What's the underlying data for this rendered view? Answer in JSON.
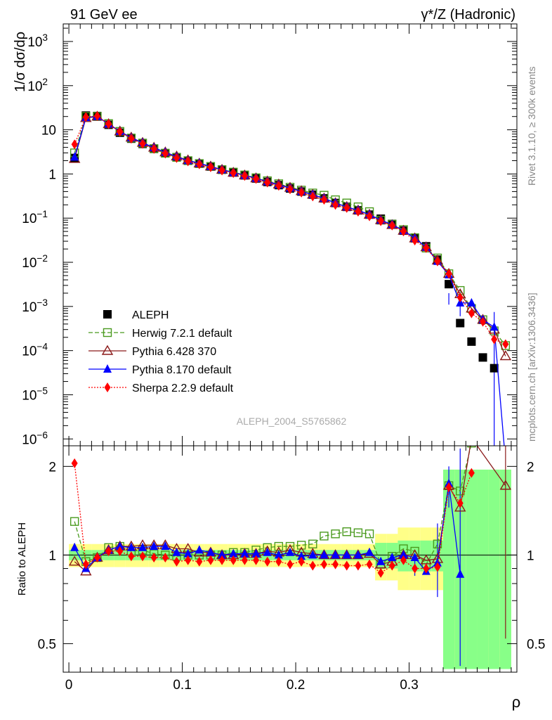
{
  "header": {
    "left_title": "91 GeV ee",
    "right_title": "γ*/Z (Hadronic)",
    "side_label_1": "Rivet 3.1.10, ≥ 300k events",
    "side_label_2": "mcplots.cern.ch [arXiv:1306.3436]",
    "analysis_id": "ALEPH_2004_S5765862"
  },
  "colors": {
    "data": "#000000",
    "herwig": "#4a9a1e",
    "pythia6": "#8b1a1a",
    "pythia8": "#0000ff",
    "sherpa": "#ff0000",
    "band_yellow": "#ffff88",
    "band_green": "#88ff88"
  },
  "chart_data": [
    {
      "type": "line",
      "title": "91 GeV ee",
      "xlabel": "ρ",
      "ylabel": "1/σ dσ/dρ",
      "yscale": "log",
      "xlim": [
        -0.005,
        0.395
      ],
      "ylim": [
        7e-07,
        2500
      ],
      "y_tick_labels": [
        "10^-6",
        "10^-5",
        "10^-4",
        "10^-3",
        "10^-2",
        "10^-1",
        "1",
        "10",
        "10^2",
        "10^3"
      ],
      "legend": [
        "ALEPH",
        "Herwig 7.2.1 default",
        "Pythia 6.428 370",
        "Pythia 8.170 default",
        "Sherpa 2.2.9 default"
      ],
      "legend_position": "bottom-left",
      "x": [
        0.005,
        0.015,
        0.025,
        0.035,
        0.045,
        0.055,
        0.065,
        0.075,
        0.085,
        0.095,
        0.105,
        0.115,
        0.125,
        0.135,
        0.145,
        0.155,
        0.165,
        0.175,
        0.185,
        0.195,
        0.205,
        0.215,
        0.225,
        0.235,
        0.245,
        0.255,
        0.265,
        0.275,
        0.285,
        0.295,
        0.305,
        0.315,
        0.325,
        0.335,
        0.345,
        0.355,
        0.365,
        0.375,
        0.385
      ],
      "series": [
        {
          "name": "ALEPH",
          "values": [
            2.3,
            21,
            20.5,
            13,
            8.6,
            6.3,
            4.8,
            3.7,
            2.95,
            2.4,
            2.0,
            1.72,
            1.47,
            1.25,
            1.08,
            0.93,
            0.79,
            0.66,
            0.56,
            0.47,
            0.4,
            0.34,
            0.28,
            0.22,
            0.18,
            0.15,
            0.12,
            0.097,
            0.074,
            0.052,
            0.035,
            0.023,
            0.0115,
            0.0032,
            0.00042,
            0.00016,
            7e-05,
            4e-05,
            null
          ]
        },
        {
          "name": "Herwig 7.2.1 default",
          "values": [
            3.0,
            20,
            20,
            13.8,
            9.2,
            6.5,
            5.0,
            3.75,
            2.95,
            2.38,
            2.0,
            1.72,
            1.48,
            1.25,
            1.1,
            0.95,
            0.82,
            0.7,
            0.6,
            0.5,
            0.43,
            0.37,
            0.33,
            0.26,
            0.22,
            0.18,
            0.14,
            0.09,
            0.073,
            0.055,
            0.036,
            0.021,
            0.0125,
            0.0055,
            0.0023,
            0.0009,
            0.0005,
            0.00028,
            0.00013
          ]
        },
        {
          "name": "Pythia 6.428 370",
          "values": [
            2.2,
            18.5,
            20,
            13.5,
            9.2,
            6.7,
            5.1,
            3.95,
            3.1,
            2.5,
            2.05,
            1.73,
            1.48,
            1.25,
            1.07,
            0.93,
            0.8,
            0.68,
            0.58,
            0.49,
            0.41,
            0.34,
            0.28,
            0.22,
            0.18,
            0.15,
            0.12,
            0.09,
            0.07,
            0.052,
            0.035,
            0.022,
            0.011,
            0.0055,
            0.0019,
            0.0009,
            0.0005,
            0.0003,
            7.5e-05
          ]
        },
        {
          "name": "Pythia 8.170 default",
          "values": [
            2.4,
            19,
            20,
            13.5,
            9.2,
            6.6,
            5.1,
            3.95,
            3.1,
            2.45,
            2.0,
            1.75,
            1.47,
            1.25,
            1.08,
            0.93,
            0.8,
            0.67,
            0.57,
            0.48,
            0.4,
            0.34,
            0.28,
            0.22,
            0.18,
            0.15,
            0.12,
            0.09,
            0.072,
            0.052,
            0.035,
            0.022,
            0.0105,
            0.0052,
            0.0012,
            0.0012,
            0.0005,
            0.00034,
            3e-07
          ]
        },
        {
          "name": "Sherpa 2.2.9 default",
          "values": [
            4.7,
            19.5,
            20.5,
            13.5,
            9.0,
            6.3,
            4.8,
            3.7,
            2.9,
            2.3,
            1.93,
            1.65,
            1.42,
            1.2,
            1.05,
            0.9,
            0.77,
            0.64,
            0.54,
            0.45,
            0.38,
            0.31,
            0.26,
            0.2,
            0.17,
            0.14,
            0.11,
            0.085,
            0.068,
            0.05,
            0.031,
            0.021,
            0.0105,
            0.0055,
            0.0016,
            0.0007,
            0.00045,
            0.00018,
            0.00014
          ]
        }
      ]
    },
    {
      "type": "line",
      "ylabel": "Ratio to ALEPH",
      "xlabel": "ρ",
      "yscale": "log",
      "ylim": [
        0.4,
        2.35
      ],
      "x_ticks": [
        0,
        0.1,
        0.2,
        0.3
      ],
      "y_ticks": [
        0.5,
        1,
        2
      ],
      "series": [
        {
          "name": "Herwig 7.2.1 default",
          "values": [
            1.3,
            0.95,
            0.98,
            1.06,
            1.07,
            1.03,
            1.04,
            1.01,
            1.0,
            0.99,
            1.0,
            1.0,
            1.0,
            1.0,
            1.02,
            1.02,
            1.04,
            1.06,
            1.07,
            1.07,
            1.08,
            1.09,
            1.16,
            1.18,
            1.2,
            1.19,
            1.18,
            0.93,
            0.99,
            1.05,
            1.03,
            0.93,
            1.09,
            1.72,
            1.65,
            2.4,
            null,
            null,
            null
          ]
        },
        {
          "name": "Pythia 6.428 370",
          "values": [
            0.95,
            0.88,
            0.98,
            1.04,
            1.07,
            1.07,
            1.08,
            1.08,
            1.08,
            1.05,
            1.05,
            1.02,
            1.02,
            1.0,
            1.0,
            1.01,
            1.01,
            1.03,
            1.02,
            1.04,
            1.02,
            1.01,
            1.0,
            1.0,
            1.0,
            1.0,
            1.01,
            0.93,
            0.95,
            1.0,
            1.0,
            0.96,
            0.97,
            1.72,
            1.45,
            2.5,
            null,
            null,
            1.72
          ]
        },
        {
          "name": "Pythia 8.170 default",
          "values": [
            1.06,
            0.9,
            0.98,
            1.04,
            1.07,
            1.06,
            1.06,
            1.07,
            1.07,
            1.02,
            1.01,
            1.04,
            1.02,
            1.0,
            1.01,
            1.01,
            1.01,
            1.02,
            1.0,
            1.02,
            0.99,
            1.0,
            1.0,
            1.0,
            1.0,
            1.0,
            1.02,
            0.95,
            0.98,
            1.0,
            0.98,
            0.88,
            0.94,
            1.75,
            0.86,
            null,
            null,
            null,
            null
          ]
        },
        {
          "name": "Sherpa 2.2.9 default",
          "values": [
            2.05,
            0.93,
            0.98,
            1.03,
            1.03,
            0.99,
            0.99,
            0.98,
            0.98,
            0.95,
            0.96,
            0.95,
            0.96,
            0.96,
            0.96,
            0.96,
            0.96,
            0.95,
            0.95,
            0.93,
            0.95,
            0.92,
            0.93,
            0.93,
            0.92,
            0.92,
            0.93,
            0.87,
            0.92,
            0.96,
            0.9,
            0.9,
            0.91,
            1.7,
            1.5,
            1.9,
            null,
            null,
            null
          ]
        }
      ]
    }
  ]
}
